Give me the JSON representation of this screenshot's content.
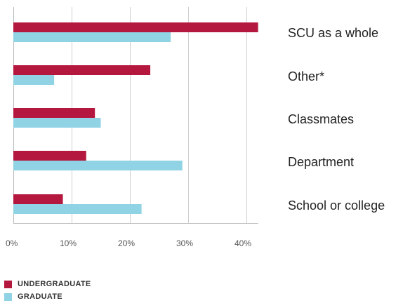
{
  "chart_data": {
    "type": "bar",
    "orientation": "horizontal",
    "categories": [
      "SCU as a whole",
      "Other*",
      "Classmates",
      "Department",
      "School or college"
    ],
    "series": [
      {
        "name": "UNDERGRADUATE",
        "color": "#b5183f",
        "values": [
          42,
          23.5,
          14,
          12.5,
          8.5
        ]
      },
      {
        "name": "GRADUATE",
        "color": "#8fd3e4",
        "values": [
          27,
          7,
          15,
          29,
          22
        ]
      }
    ],
    "x_ticks": [
      "0%",
      "10%",
      "20%",
      "30%",
      "40%"
    ],
    "xlim": [
      0,
      42
    ],
    "grid": true,
    "legend_position": "bottom-left"
  }
}
